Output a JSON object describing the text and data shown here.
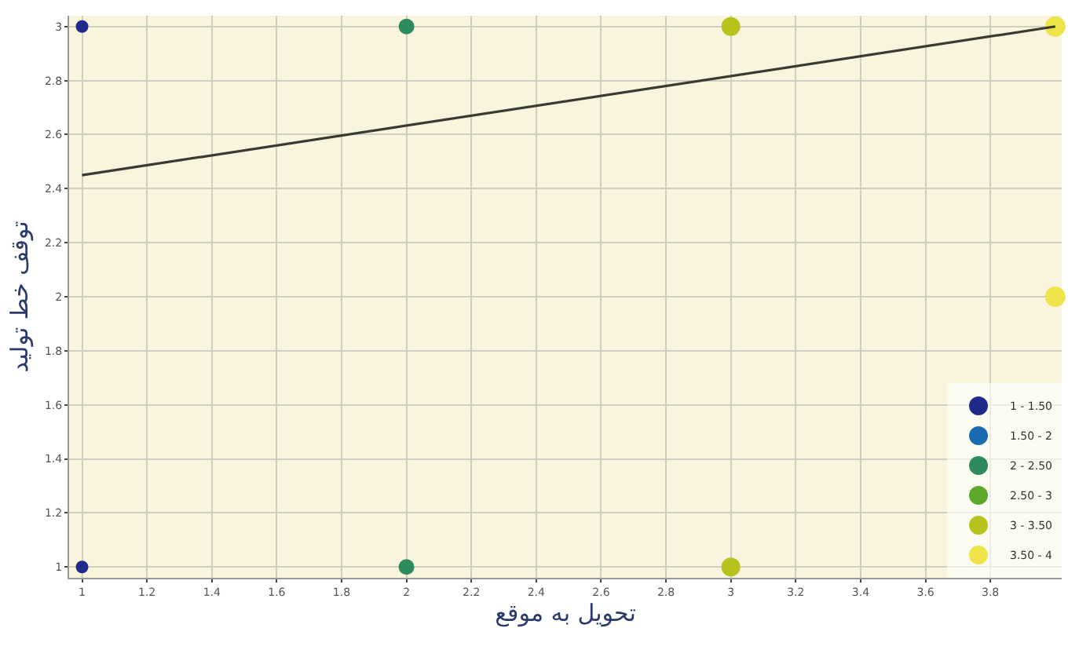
{
  "chart_data": {
    "type": "scatter",
    "xlabel": "تحویل به موقع",
    "ylabel": "توقف خط تولید",
    "xlim": [
      0.96,
      4.02
    ],
    "ylim": [
      0.96,
      3.04
    ],
    "xticks": [
      1,
      1.2,
      1.4,
      1.6,
      1.8,
      2,
      2.2,
      2.4,
      2.6,
      2.8,
      3,
      3.2,
      3.4,
      3.6,
      3.8
    ],
    "yticks": [
      1,
      1.2,
      1.4,
      1.6,
      1.8,
      2,
      2.2,
      2.4,
      2.6,
      2.8,
      3
    ],
    "grid": true,
    "legend": "bottom right",
    "marker": "circle",
    "series": [
      {
        "name": "1 - 1.50",
        "color": "#1f2a8a",
        "x": [
          1,
          1
        ],
        "values": [
          1,
          3
        ]
      },
      {
        "name": "1.50 - 2",
        "color": "#1c6bb0"
      },
      {
        "name": "2 - 2.50",
        "color": "#2e8b5e",
        "x": [
          2,
          2
        ],
        "values": [
          1,
          3
        ]
      },
      {
        "name": "2.50 - 3",
        "color": "#5ea82c"
      },
      {
        "name": "3 - 3.50",
        "color": "#b8c21c",
        "x": [
          3,
          3
        ],
        "values": [
          1,
          3
        ]
      },
      {
        "name": "3.50 - 4",
        "color": "#eee44a",
        "x": [
          4,
          4
        ],
        "values": [
          2,
          3
        ]
      },
      {
        "type": "line",
        "color": "#3a3a30",
        "x": [
          1,
          4
        ],
        "values": [
          2.45,
          3.0
        ],
        "line_style": "solid",
        "marker": "none"
      }
    ]
  }
}
